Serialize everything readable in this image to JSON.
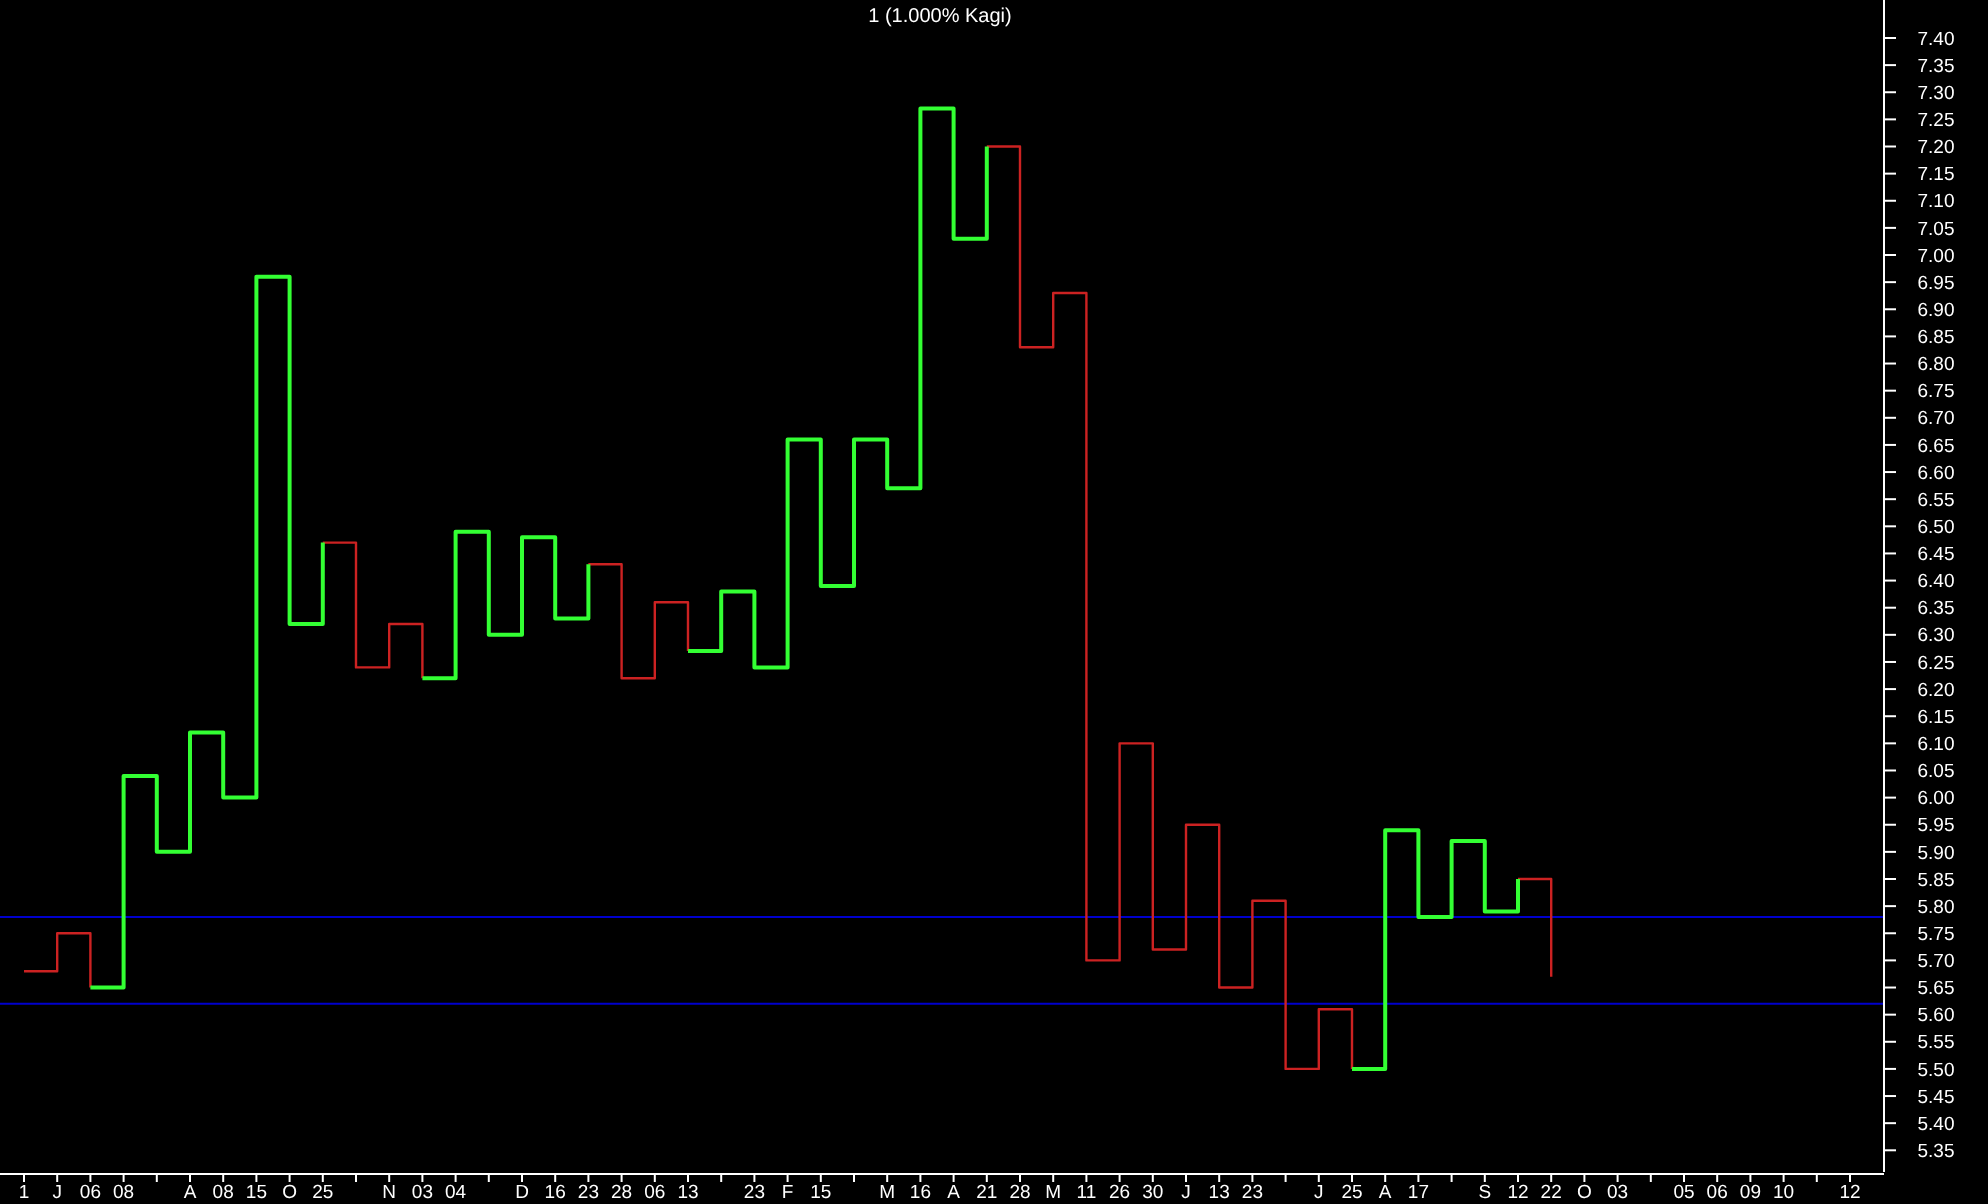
{
  "chart_data": {
    "type": "step",
    "title": "1 (1.000% Kagi)",
    "categories": [
      "1",
      "J",
      "06",
      "08",
      null,
      "A",
      "08",
      "15",
      "O",
      "25",
      null,
      "N",
      "03",
      "04",
      null,
      "D",
      "16",
      "23",
      "28",
      "06",
      "13",
      null,
      "23",
      "F",
      "15",
      null,
      "M",
      "16",
      "A",
      "21",
      "28",
      "M",
      "11",
      "26",
      "30",
      "J",
      "13",
      "23",
      null,
      "J",
      "25",
      "A",
      "17",
      null,
      "S",
      "12",
      "22",
      "O",
      "03",
      null,
      "05",
      "06",
      "09",
      "10",
      null,
      "12"
    ],
    "series": [
      {
        "color": "#cc2222",
        "values": [
          5.68,
          5.75,
          5.65,
          null,
          null,
          null,
          null,
          null,
          null,
          6.47,
          6.24,
          6.32,
          6.22,
          null,
          null,
          null,
          null,
          6.43,
          6.22,
          6.36,
          6.27,
          null,
          null,
          null,
          null,
          null,
          null,
          null,
          null,
          7.2,
          6.83,
          6.93,
          5.7,
          6.1,
          5.72,
          5.95,
          5.65,
          5.81,
          5.5,
          5.61,
          5.5,
          null,
          null,
          null,
          null,
          5.85,
          5.67,
          null,
          null,
          null,
          null,
          null,
          null,
          null,
          null,
          null
        ]
      },
      {
        "color": "#33ff33",
        "values": [
          null,
          null,
          5.65,
          6.04,
          5.9,
          6.12,
          6.0,
          6.96,
          6.32,
          6.47,
          null,
          null,
          6.22,
          6.49,
          6.3,
          6.48,
          6.33,
          6.43,
          null,
          null,
          6.27,
          6.38,
          6.24,
          6.66,
          6.39,
          6.66,
          6.57,
          7.27,
          7.03,
          7.2,
          null,
          null,
          null,
          null,
          null,
          null,
          null,
          null,
          null,
          null,
          5.5,
          5.94,
          5.78,
          5.92,
          5.79,
          5.85,
          null,
          null,
          null,
          null,
          null,
          null,
          null,
          null,
          null,
          null
        ]
      }
    ],
    "ylim": [
      5.31,
      7.47
    ],
    "yticks": [
      {
        "value": 5.35,
        "label": "5.35"
      },
      {
        "value": 5.4,
        "label": "5.40"
      },
      {
        "value": 5.45,
        "label": "5.45"
      },
      {
        "value": 5.5,
        "label": "5.50"
      },
      {
        "value": 5.55,
        "label": "5.55"
      },
      {
        "value": 5.6,
        "label": "5.60"
      },
      {
        "value": 5.65,
        "label": "5.65"
      },
      {
        "value": 5.7,
        "label": "5.70"
      },
      {
        "value": 5.75,
        "label": "5.75"
      },
      {
        "value": 5.8,
        "label": "5.80"
      },
      {
        "value": 5.85,
        "label": "5.85"
      },
      {
        "value": 5.9,
        "label": "5.90"
      },
      {
        "value": 5.95,
        "label": "5.95"
      },
      {
        "value": 6.0,
        "label": "6.00"
      },
      {
        "value": 6.05,
        "label": "6.05"
      },
      {
        "value": 6.1,
        "label": "6.10"
      },
      {
        "value": 6.15,
        "label": "6.15"
      },
      {
        "value": 6.2,
        "label": "6.20"
      },
      {
        "value": 6.25,
        "label": "6.25"
      },
      {
        "value": 6.3,
        "label": "6.30"
      },
      {
        "value": 6.35,
        "label": "6.35"
      },
      {
        "value": 6.4,
        "label": "6.40"
      },
      {
        "value": 6.45,
        "label": "6.45"
      },
      {
        "value": 6.5,
        "label": "6.50"
      },
      {
        "value": 6.55,
        "label": "6.55"
      },
      {
        "value": 6.6,
        "label": "6.60"
      },
      {
        "value": 6.65,
        "label": "6.65"
      },
      {
        "value": 6.7,
        "label": "6.70"
      },
      {
        "value": 6.75,
        "label": "6.75"
      },
      {
        "value": 6.8,
        "label": "6.80"
      },
      {
        "value": 6.85,
        "label": "6.85"
      },
      {
        "value": 6.9,
        "label": "6.90"
      },
      {
        "value": 6.95,
        "label": "6.95"
      },
      {
        "value": 7.0,
        "label": "7.00"
      },
      {
        "value": 7.05,
        "label": "7.05"
      },
      {
        "value": 7.1,
        "label": "7.10"
      },
      {
        "value": 7.15,
        "label": "7.15"
      },
      {
        "value": 7.2,
        "label": "7.20"
      },
      {
        "value": 7.25,
        "label": "7.25"
      },
      {
        "value": 7.3,
        "label": "7.30"
      },
      {
        "value": 7.35,
        "label": "7.35"
      },
      {
        "value": 7.4,
        "label": "7.40"
      }
    ],
    "ref_lines": [
      {
        "axis": "y",
        "value": 5.78,
        "color": "#0000cc"
      },
      {
        "axis": "y",
        "value": 5.62,
        "color": "#0000cc"
      }
    ]
  }
}
